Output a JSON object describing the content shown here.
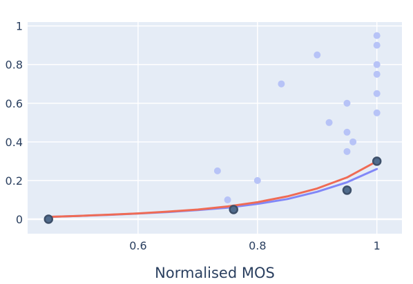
{
  "chart_data": {
    "type": "scatter",
    "title": "",
    "xlabel": "Normalised MOS",
    "ylabel": "",
    "xlim": [
      0.415,
      1.042
    ],
    "ylim": [
      -0.075,
      1.02
    ],
    "x_ticks": [
      0.6,
      0.8,
      1
    ],
    "x_tick_labels": [
      "0.6",
      "0.8",
      "1"
    ],
    "y_ticks": [
      0,
      0.2,
      0.4,
      0.6,
      0.8,
      1
    ],
    "y_tick_labels": [
      "0",
      "0.2",
      "0.4",
      "0.6",
      "0.8",
      "1"
    ],
    "grid": true,
    "legend": "none",
    "colors": {
      "background": "#e5ecf6",
      "grid": "#ffffff",
      "faint_points": "#b7c3f7",
      "highlight_fill": "#506b8c",
      "highlight_outline": "#3d4f69",
      "fit_red": "#ef6b55",
      "fit_blue": "#8187f7"
    },
    "series": [
      {
        "mode": "markers",
        "style": "faint",
        "x": [
          0.733,
          0.75,
          0.8,
          0.84,
          0.9,
          0.92,
          0.95,
          0.95,
          0.95,
          0.96,
          1,
          1,
          1,
          1,
          1,
          1
        ],
        "y": [
          0.25,
          0.1,
          0.2,
          0.7,
          0.85,
          0.5,
          0.6,
          0.45,
          0.35,
          0.4,
          0.95,
          0.9,
          0.8,
          0.75,
          0.65,
          0.55
        ]
      },
      {
        "mode": "markers",
        "style": "highlight",
        "x": [
          0.45,
          0.76,
          0.95,
          1
        ],
        "y": [
          0,
          0.05,
          0.15,
          0.3
        ]
      },
      {
        "mode": "lines",
        "style": "fit_blue",
        "x": [
          0.45,
          0.5,
          0.55,
          0.6,
          0.65,
          0.7,
          0.75,
          0.8,
          0.85,
          0.9,
          0.95,
          1
        ],
        "y": [
          0.012,
          0.017,
          0.022,
          0.029,
          0.037,
          0.047,
          0.06,
          0.079,
          0.104,
          0.142,
          0.191,
          0.26
        ]
      },
      {
        "mode": "lines",
        "style": "fit_red",
        "x": [
          0.45,
          0.5,
          0.55,
          0.6,
          0.65,
          0.7,
          0.75,
          0.8,
          0.85,
          0.9,
          0.95,
          1
        ],
        "y": [
          0.012,
          0.017,
          0.023,
          0.03,
          0.039,
          0.05,
          0.066,
          0.088,
          0.118,
          0.159,
          0.216,
          0.3
        ]
      }
    ]
  }
}
